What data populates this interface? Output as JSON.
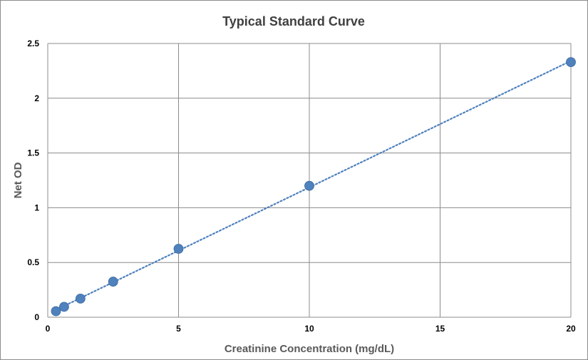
{
  "chart_data": {
    "type": "scatter",
    "title": "Typical Standard Curve",
    "xlabel": "Creatinine Concentration (mg/dL)",
    "ylabel": "Net OD",
    "xlim": [
      0,
      20
    ],
    "ylim": [
      0,
      2.5
    ],
    "x_ticks": [
      "0",
      "5",
      "10",
      "15",
      "20"
    ],
    "y_ticks": [
      "0",
      "0.5",
      "1",
      "1.5",
      "2",
      "2.5"
    ],
    "grid": true,
    "series": [
      {
        "points": [
          {
            "x": 0.3125,
            "y": 0.055
          },
          {
            "x": 0.625,
            "y": 0.095
          },
          {
            "x": 1.25,
            "y": 0.17
          },
          {
            "x": 2.5,
            "y": 0.325
          },
          {
            "x": 5,
            "y": 0.625
          },
          {
            "x": 10,
            "y": 1.2
          },
          {
            "x": 20,
            "y": 2.33
          }
        ],
        "color": "#4f81bd",
        "trendline": "linear dotted"
      }
    ]
  }
}
